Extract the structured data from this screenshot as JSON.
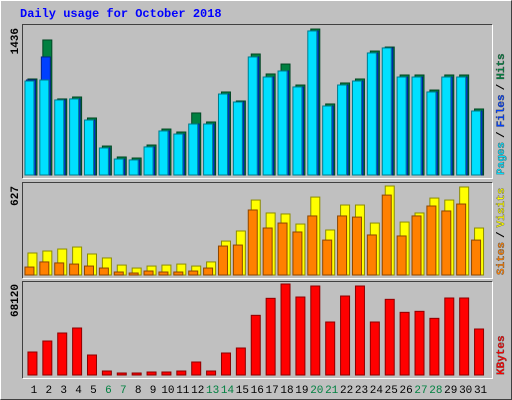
{
  "title": "Daily usage for October 2018",
  "legend_separator": "/",
  "chart_data": [
    {
      "type": "bar",
      "ylim": [
        0,
        1436
      ],
      "yticks": [
        1436
      ],
      "series": [
        {
          "name": "Pages",
          "color": "#00e0ff",
          "values": [
            918,
            928,
            733,
            743,
            537,
            264,
            156,
            147,
            274,
            430,
            400,
            498,
            498,
            791,
            713,
            1153,
            957,
            1016,
            860,
            1407,
            674,
            879,
            918,
            1192,
            1241,
            957,
            957,
            811,
            957,
            957,
            625
          ]
        },
        {
          "name": "Files",
          "color": "#0040ff",
          "values": [
            928,
            1153,
            733,
            743,
            537,
            264,
            156,
            147,
            274,
            430,
            400,
            498,
            498,
            791,
            713,
            1153,
            957,
            1016,
            860,
            1407,
            674,
            879,
            918,
            1192,
            1241,
            957,
            957,
            811,
            957,
            957,
            625
          ]
        },
        {
          "name": "Hits",
          "color": "#008040",
          "values": [
            938,
            1319,
            743,
            762,
            557,
            283,
            176,
            166,
            293,
            449,
            420,
            606,
            518,
            811,
            723,
            1182,
            987,
            1084,
            879,
            1426,
            694,
            899,
            938,
            1211,
            1250,
            977,
            977,
            830,
            977,
            977,
            645
          ]
        }
      ]
    },
    {
      "type": "bar",
      "ylim": [
        0,
        627
      ],
      "yticks": [
        627
      ],
      "series": [
        {
          "name": "Sites",
          "color": "#ff8000",
          "values": [
            56,
            92,
            85,
            77,
            63,
            49,
            21,
            14,
            28,
            21,
            21,
            28,
            49,
            204,
            211,
            458,
            331,
            366,
            303,
            416,
            246,
            416,
            408,
            282,
            563,
            275,
            416,
            486,
            451,
            500,
            246
          ]
        },
        {
          "name": "Visits",
          "color": "#ffff00",
          "values": [
            155,
            169,
            183,
            197,
            148,
            120,
            70,
            49,
            63,
            70,
            77,
            63,
            92,
            239,
            310,
            528,
            437,
            430,
            359,
            549,
            317,
            493,
            493,
            366,
            627,
            373,
            437,
            542,
            528,
            620,
            331
          ]
        }
      ]
    },
    {
      "type": "bar",
      "ylim": [
        0,
        68120
      ],
      "yticks": [
        68120
      ],
      "categories": [
        "1",
        "2",
        "3",
        "4",
        "5",
        "6",
        "7",
        "8",
        "9",
        "10",
        "11",
        "12",
        "13",
        "14",
        "15",
        "16",
        "17",
        "18",
        "19",
        "20",
        "21",
        "22",
        "23",
        "24",
        "25",
        "26",
        "27",
        "28",
        "29",
        "30",
        "31"
      ],
      "category_colors": [
        "#000000",
        "#000000",
        "#000000",
        "#000000",
        "#000000",
        "#008040",
        "#008040",
        "#000000",
        "#000000",
        "#000000",
        "#000000",
        "#000000",
        "#008040",
        "#008040",
        "#000000",
        "#000000",
        "#000000",
        "#000000",
        "#000000",
        "#008040",
        "#008040",
        "#000000",
        "#000000",
        "#000000",
        "#000000",
        "#000000",
        "#008040",
        "#008040",
        "#000000",
        "#000000",
        "#000000"
      ],
      "series": [
        {
          "name": "KBytes",
          "color": "#ff0000",
          "values": [
            17218,
            25450,
            31440,
            35180,
            14970,
            2990,
            1500,
            1500,
            2250,
            2250,
            2990,
            9730,
            2990,
            16470,
            20210,
            44670,
            57400,
            68120,
            58380,
            66620,
            39670,
            59130,
            66620,
            39670,
            56640,
            46910,
            47660,
            42420,
            57640,
            57640,
            34430
          ]
        }
      ]
    }
  ]
}
